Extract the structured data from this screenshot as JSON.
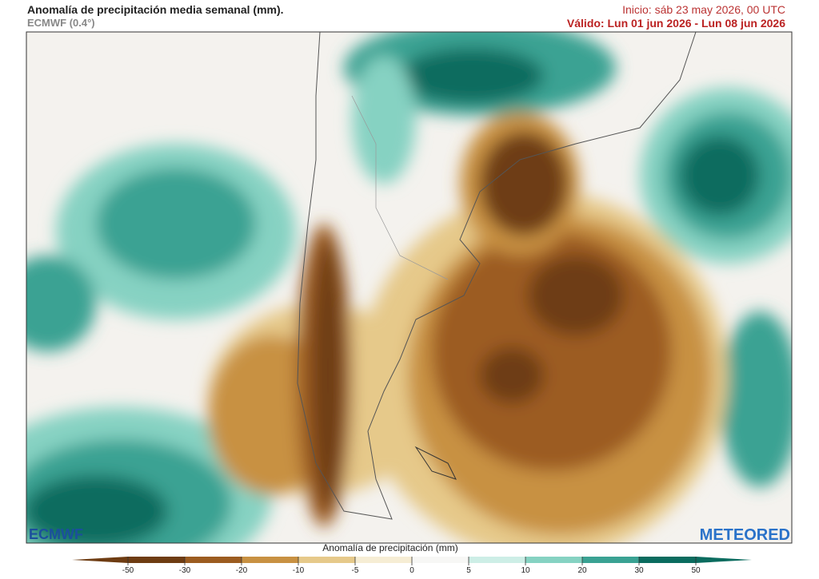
{
  "header": {
    "title": "Anomalía de precipitación media semanal (mm).",
    "model": "ECMWF (0.4°)",
    "init": "Inicio:  sáb 23 may 2026, 00 UTC",
    "valid": "Válido: Lun 01 jun 2026 - Lun 08 jun 2026"
  },
  "logos": {
    "left": "ECMWF",
    "right": "METEORED"
  },
  "colorbar": {
    "label": "Anomalía de precipitación (mm)",
    "ticks": [
      -50,
      -30,
      -20,
      -10,
      -5,
      0,
      5,
      10,
      20,
      30,
      50
    ],
    "colors": [
      "#6e3c12",
      "#9c5c20",
      "#c89142",
      "#e6c98a",
      "#f6edd4",
      "#f7f7f5",
      "#cdeee6",
      "#86d2c2",
      "#3aa293",
      "#0b6c5f"
    ]
  }
}
